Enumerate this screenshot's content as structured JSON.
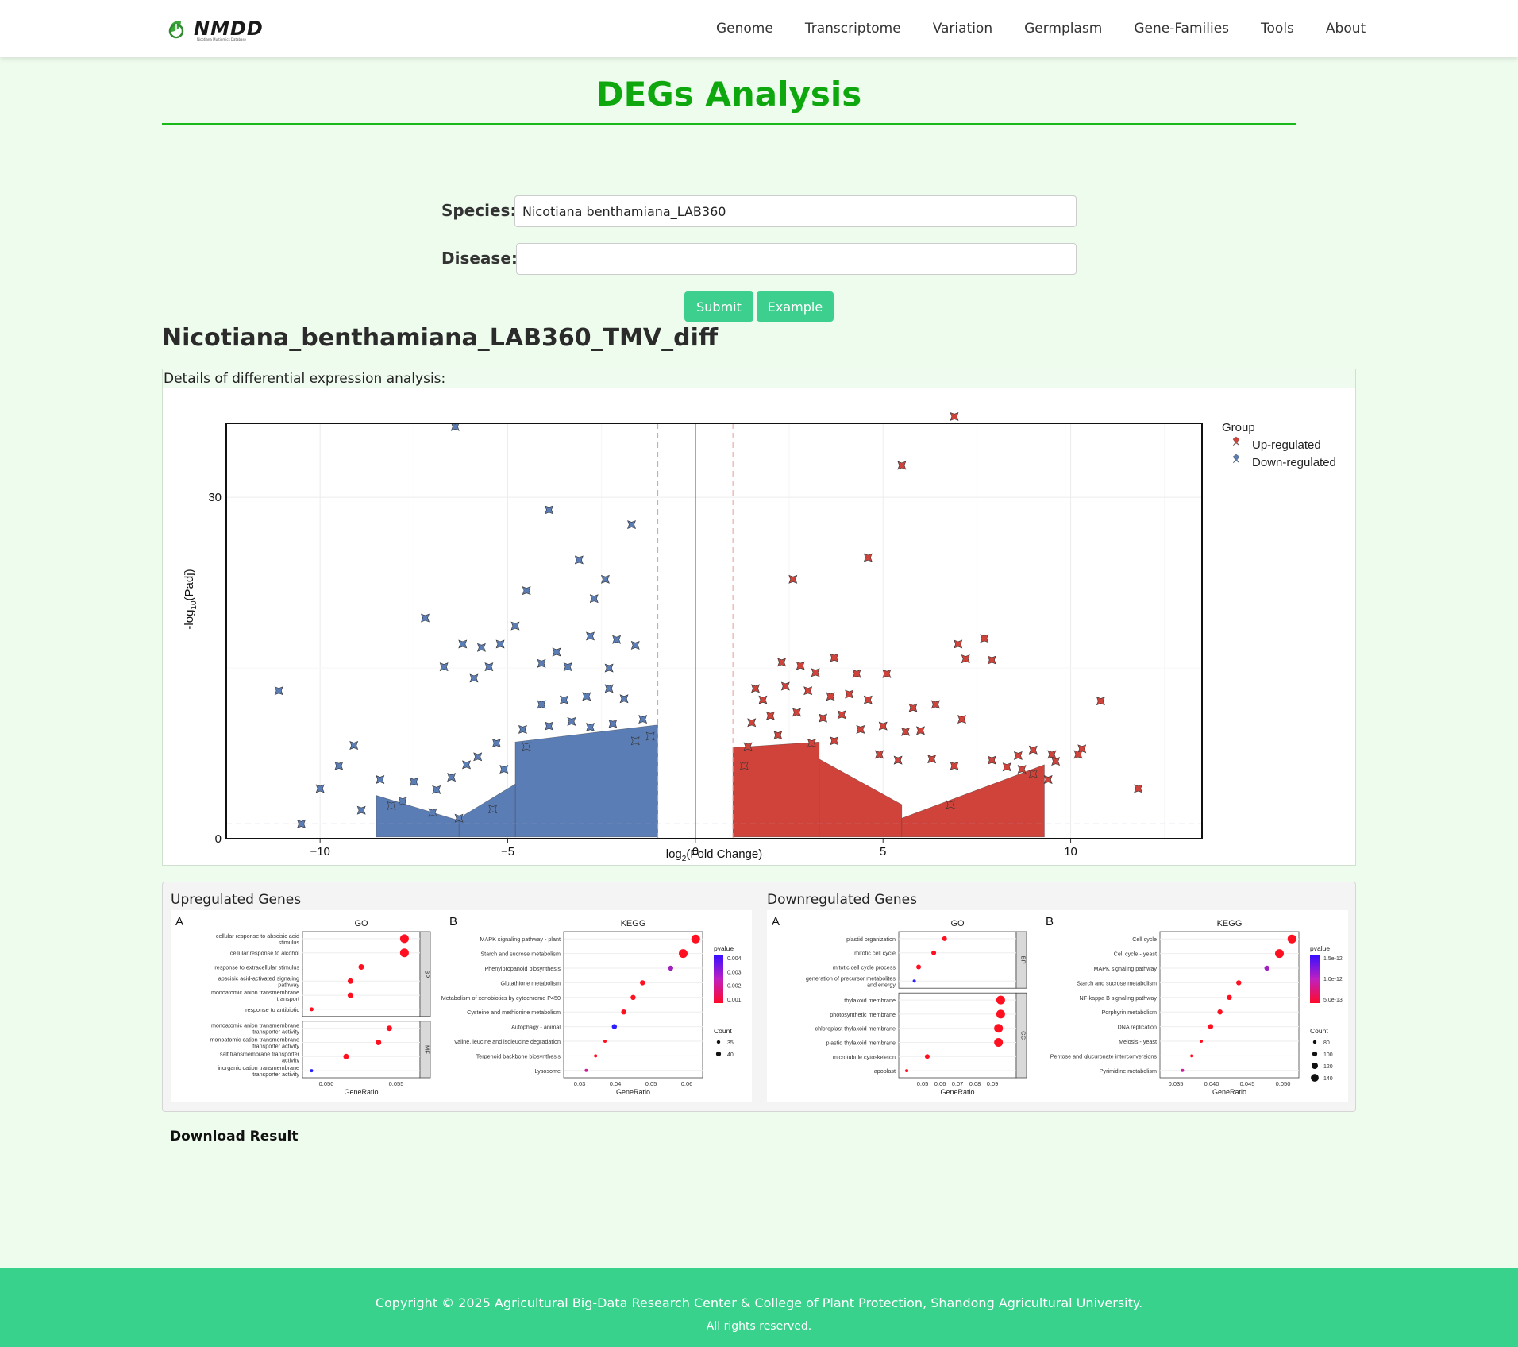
{
  "brand": {
    "name": "NMDD",
    "tagline": "Nicotiana Multiomics Database"
  },
  "nav": [
    "Genome",
    "Transcriptome",
    "Variation",
    "Germplasm",
    "Gene-Families",
    "Tools",
    "About"
  ],
  "page": {
    "title": "DEGs Analysis"
  },
  "form": {
    "species_label": "Species:",
    "species_value": "Nicotiana benthamiana_LAB360",
    "disease_label": "Disease:",
    "disease_value": "",
    "submit_label": "Submit",
    "example_label": "Example"
  },
  "result": {
    "title": "Nicotiana_benthamiana_LAB360_TMV_diff",
    "details_label": "Details of differential expression analysis:"
  },
  "colors": {
    "brand_green": "#0ea70e",
    "accent": "#3ccf8e",
    "up": "#d0433a",
    "down": "#5b7db5"
  },
  "chart_data": {
    "type": "scatter",
    "title": "",
    "xlabel": "log2(Fold Change)",
    "ylabel": "-log10(Padj)",
    "xlim": [
      -12.5,
      13.5
    ],
    "ylim": [
      0,
      36.5
    ],
    "xticks": [
      "−10",
      "−5",
      "0",
      "5",
      "10"
    ],
    "yticks": [
      "0",
      "30"
    ],
    "thresholds": {
      "log2fc": [
        -1,
        1
      ],
      "padj_line": 1.3
    },
    "legend": {
      "title": "Group",
      "placement": "right",
      "entries": [
        "Up-regulated",
        "Down-regulated"
      ]
    },
    "series": [
      {
        "name": "Up-regulated",
        "color": "#d0433a",
        "points": [
          [
            6.9,
            37.1
          ],
          [
            5.5,
            32.8
          ],
          [
            4.6,
            24.7
          ],
          [
            2.6,
            22.8
          ],
          [
            7.0,
            17.1
          ],
          [
            7.7,
            17.6
          ],
          [
            7.2,
            15.8
          ],
          [
            7.9,
            15.7
          ],
          [
            10.8,
            12.1
          ],
          [
            11.8,
            4.4
          ],
          [
            2.3,
            15.5
          ],
          [
            2.8,
            15.2
          ],
          [
            3.2,
            14.6
          ],
          [
            3.7,
            15.9
          ],
          [
            4.3,
            14.5
          ],
          [
            5.1,
            14.5
          ],
          [
            1.6,
            13.2
          ],
          [
            1.8,
            12.2
          ],
          [
            2.4,
            13.4
          ],
          [
            3.0,
            13.0
          ],
          [
            3.6,
            12.5
          ],
          [
            4.1,
            12.7
          ],
          [
            4.6,
            12.2
          ],
          [
            5.8,
            11.5
          ],
          [
            6.4,
            11.8
          ],
          [
            7.1,
            10.5
          ],
          [
            1.5,
            10.2
          ],
          [
            2.0,
            10.8
          ],
          [
            2.7,
            11.1
          ],
          [
            3.4,
            10.6
          ],
          [
            3.9,
            10.9
          ],
          [
            4.4,
            9.6
          ],
          [
            5.0,
            9.9
          ],
          [
            5.6,
            9.4
          ],
          [
            6.0,
            9.5
          ],
          [
            8.6,
            7.3
          ],
          [
            9.0,
            7.8
          ],
          [
            9.5,
            7.4
          ],
          [
            10.3,
            7.9
          ],
          [
            10.2,
            7.4
          ],
          [
            7.9,
            6.9
          ],
          [
            8.3,
            6.3
          ],
          [
            9.4,
            5.2
          ],
          [
            9.6,
            6.8
          ],
          [
            9.0,
            5.7
          ],
          [
            8.7,
            6.1
          ],
          [
            4.9,
            7.4
          ],
          [
            5.4,
            6.9
          ],
          [
            6.3,
            7.0
          ],
          [
            6.9,
            6.4
          ],
          [
            3.1,
            8.4
          ],
          [
            3.7,
            8.6
          ],
          [
            2.2,
            9.1
          ],
          [
            1.4,
            8.1
          ],
          [
            1.3,
            6.4
          ],
          [
            6.8,
            3.0
          ]
        ]
      },
      {
        "name": "Down-regulated",
        "color": "#5b7db5",
        "points": [
          [
            -6.4,
            36.2
          ],
          [
            -3.9,
            28.9
          ],
          [
            -1.7,
            27.6
          ],
          [
            -3.1,
            24.5
          ],
          [
            -2.4,
            22.8
          ],
          [
            -4.5,
            21.8
          ],
          [
            -2.7,
            21.1
          ],
          [
            -7.2,
            19.4
          ],
          [
            -11.1,
            13.0
          ],
          [
            -1.6,
            17.0
          ],
          [
            -2.1,
            17.5
          ],
          [
            -2.8,
            17.8
          ],
          [
            -3.7,
            16.4
          ],
          [
            -4.8,
            18.7
          ],
          [
            -5.2,
            17.1
          ],
          [
            -5.7,
            16.8
          ],
          [
            -6.2,
            17.1
          ],
          [
            -4.1,
            15.4
          ],
          [
            -3.4,
            15.1
          ],
          [
            -2.3,
            15.0
          ],
          [
            -5.5,
            15.1
          ],
          [
            -5.9,
            14.1
          ],
          [
            -6.7,
            15.1
          ],
          [
            -9.1,
            8.2
          ],
          [
            -9.5,
            6.4
          ],
          [
            -10.0,
            4.4
          ],
          [
            -10.5,
            1.3
          ],
          [
            -8.4,
            5.2
          ],
          [
            -7.5,
            5.0
          ],
          [
            -6.9,
            4.3
          ],
          [
            -6.1,
            6.5
          ],
          [
            -5.8,
            7.2
          ],
          [
            -5.3,
            8.4
          ],
          [
            -4.6,
            9.6
          ],
          [
            -4.1,
            11.8
          ],
          [
            -3.5,
            12.2
          ],
          [
            -2.9,
            12.5
          ],
          [
            -2.3,
            13.2
          ],
          [
            -1.9,
            12.3
          ],
          [
            -1.4,
            10.5
          ],
          [
            -1.2,
            9.0
          ],
          [
            -1.6,
            8.6
          ],
          [
            -2.2,
            10.1
          ],
          [
            -2.8,
            9.8
          ],
          [
            -3.3,
            10.3
          ],
          [
            -3.9,
            9.9
          ],
          [
            -4.5,
            8.1
          ],
          [
            -5.1,
            6.1
          ],
          [
            -6.5,
            5.4
          ],
          [
            -7.8,
            3.3
          ],
          [
            -8.1,
            2.9
          ],
          [
            -8.9,
            2.5
          ],
          [
            -7.0,
            2.3
          ],
          [
            -6.3,
            1.8
          ],
          [
            -5.4,
            2.6
          ]
        ]
      }
    ],
    "dense_bands": {
      "up": [
        {
          "x": [
            1.0,
            3.3
          ],
          "y_top_left": 8.0,
          "y_top_right": 8.5
        },
        {
          "x": [
            3.3,
            5.5
          ],
          "y_top_left": 7.0,
          "y_top_right": 3.0
        },
        {
          "x": [
            5.5,
            9.3
          ],
          "y_top_left": 1.8,
          "y_top_right": 6.5
        }
      ],
      "down": [
        {
          "x": [
            -4.8,
            -1.0
          ],
          "y_top_left": 8.5,
          "y_top_right": 10.0
        },
        {
          "x": [
            -6.3,
            -4.8
          ],
          "y_top_left": 1.8,
          "y_top_right": 4.8
        },
        {
          "x": [
            -8.5,
            -6.3
          ],
          "y_top_left": 3.8,
          "y_top_right": 1.6
        }
      ]
    }
  },
  "enrichment": {
    "up_title": "Upregulated Genes",
    "down_title": "Downregulated Genes",
    "up": {
      "go": {
        "letter": "A",
        "title": "GO",
        "xlabel": "GeneRatio",
        "xticks": [
          "0.050",
          "0.055"
        ],
        "bp_label": "BP",
        "mf_label": "MF",
        "bp_terms": [
          "cellular response to abscisic acid stimulus",
          "cellular response to alcohol",
          "response to extracellular stimulus",
          "abscisic acid-activated signaling pathway",
          "monoatomic anion transmembrane transport",
          "response to antibiotic"
        ],
        "mf_terms": [
          "monoatomic anion transmembrane transporter activity",
          "monoatomic cation transmembrane transporter activity",
          "salt transmembrane transporter activity",
          "inorganic cation transmembrane transporter activity"
        ]
      },
      "kegg": {
        "letter": "B",
        "title": "KEGG",
        "xlabel": "GeneRatio",
        "xticks": [
          "0.03",
          "0.04",
          "0.05",
          "0.06"
        ],
        "terms": [
          "MAPK signaling pathway - plant",
          "Starch and sucrose metabolism",
          "Phenylpropanoid biosynthesis",
          "Glutathione metabolism",
          "Metabolism of xenobiotics by cytochrome P450",
          "Cysteine and methionine metabolism",
          "Autophagy - animal",
          "Valine, leucine and isoleucine degradation",
          "Terpenoid backbone biosynthesis",
          "Lysosome"
        ],
        "pvalue_title": "pvalue",
        "pvalue_ticks": [
          "0.004",
          "0.003",
          "0.002",
          "0.001"
        ],
        "count_title": "Count",
        "count_ticks": [
          "35",
          "40"
        ]
      }
    },
    "down": {
      "go": {
        "letter": "A",
        "title": "GO",
        "xlabel": "GeneRatio",
        "xticks": [
          "0.05",
          "0.06",
          "0.07",
          "0.08",
          "0.09"
        ],
        "bp_label": "BP",
        "cc_label": "CC",
        "bp_terms": [
          "plastid organization",
          "mitotic cell cycle",
          "mitotic cell cycle process",
          "generation of precursor metabolites and energy"
        ],
        "cc_terms": [
          "thylakoid membrane",
          "photosynthetic membrane",
          "chloroplast thylakoid membrane",
          "plastid thylakoid membrane",
          "microtubule cytoskeleton",
          "apoplast"
        ]
      },
      "kegg": {
        "letter": "B",
        "title": "KEGG",
        "xlabel": "GeneRatio",
        "xticks": [
          "0.035",
          "0.040",
          "0.045",
          "0.050"
        ],
        "terms": [
          "Cell cycle",
          "Cell cycle - yeast",
          "MAPK signaling pathway",
          "Starch and sucrose metabolism",
          "NF-kappa B signaling pathway",
          "Porphyrin metabolism",
          "DNA replication",
          "Meiosis - yeast",
          "Pentose and glucuronate interconversions",
          "Pyrimidine metabolism"
        ],
        "pvalue_title": "pvalue",
        "pvalue_ticks": [
          "1.5e-12",
          "1.0e-12",
          "5.0e-13"
        ],
        "count_title": "Count",
        "count_ticks": [
          "80",
          "100",
          "120",
          "140"
        ]
      }
    }
  },
  "download_label": "Download Result",
  "footer": {
    "line1": "Copyright © 2025 Agricultural Big-Data Research Center & College of Plant Protection, Shandong Agricultural University.",
    "line2": "All rights reserved."
  }
}
